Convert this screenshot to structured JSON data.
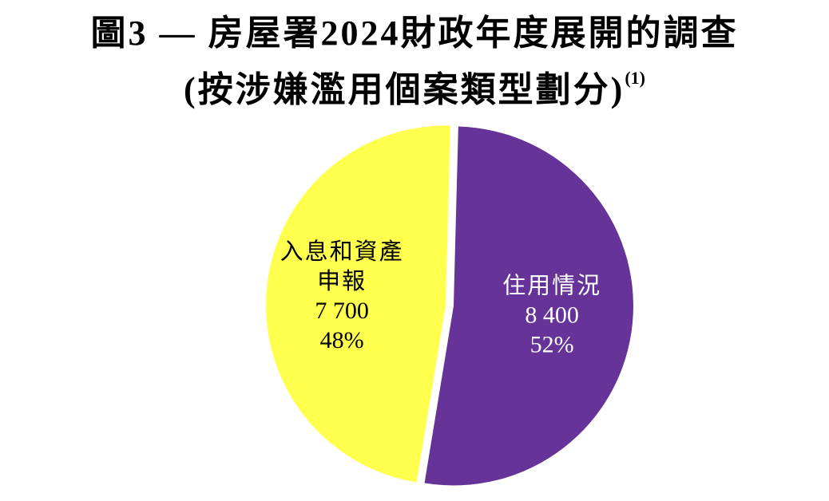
{
  "chart_data": {
    "type": "pie",
    "title_line1": "圖3 — 房屋署2024財政年度展開的調查",
    "title_line2": "(按涉嫌濫用個案類型劃分)",
    "title_footnote": "(1)",
    "slices": [
      {
        "label_lines": [
          "住用情況"
        ],
        "value": 8400,
        "value_text": "8 400",
        "percent_text": "52%",
        "color": "#663399"
      },
      {
        "label_lines": [
          "入息和資產",
          "申報"
        ],
        "value": 7700,
        "value_text": "7 700",
        "percent_text": "48%",
        "color": "#ffff4d"
      }
    ]
  }
}
